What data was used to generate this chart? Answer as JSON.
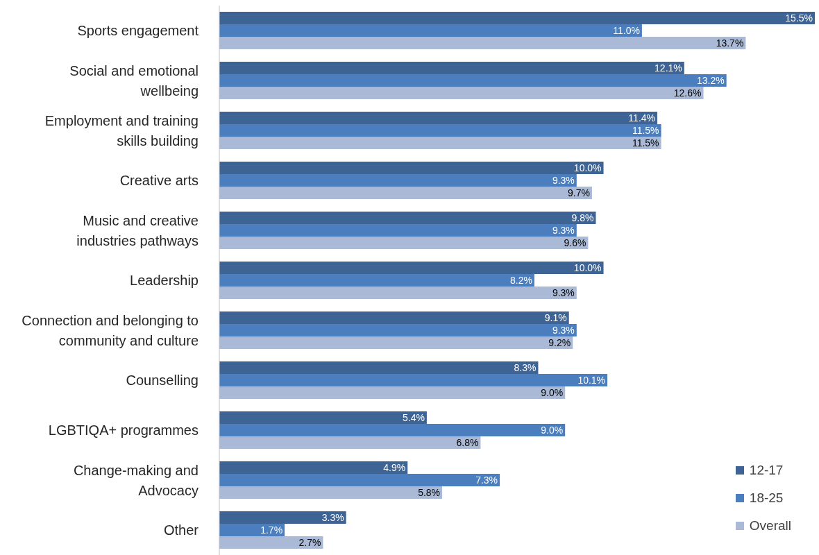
{
  "chart_data": {
    "type": "bar",
    "orientation": "horizontal",
    "categories": [
      "Sports engagement",
      "Social and emotional wellbeing",
      "Employment and training skills building",
      "Creative arts",
      "Music and creative industries pathways",
      "Leadership",
      "Connection and belonging to community and culture",
      "Counselling",
      "LGBTIQA+ programmes",
      "Change-making and Advocacy",
      "Other"
    ],
    "series": [
      {
        "name": "12-17",
        "color": "#3e6496",
        "values": [
          15.5,
          12.1,
          11.4,
          10.0,
          9.8,
          10.0,
          9.1,
          8.3,
          5.4,
          4.9,
          3.3
        ],
        "value_labels": [
          "15.5%",
          "12.1%",
          "11.4%",
          "10.0%",
          "9.8%",
          "10.0%",
          "9.1%",
          "8.3%",
          "5.4%",
          "4.9%",
          "3.3%"
        ]
      },
      {
        "name": "18-25",
        "color": "#4a7ebf",
        "values": [
          11.0,
          13.2,
          11.5,
          9.3,
          9.3,
          8.2,
          9.3,
          10.1,
          9.0,
          7.3,
          1.7
        ],
        "value_labels": [
          "11.0%",
          "13.2%",
          "11.5%",
          "9.3%",
          "9.3%",
          "8.2%",
          "9.3%",
          "10.1%",
          "9.0%",
          "7.3%",
          "1.7%"
        ]
      },
      {
        "name": "Overall",
        "color": "#a9b9d6",
        "values": [
          13.7,
          12.6,
          11.5,
          9.7,
          9.6,
          9.3,
          9.2,
          9.0,
          6.8,
          5.8,
          2.7
        ],
        "value_labels": [
          "13.7%",
          "12.6%",
          "11.5%",
          "9.7%",
          "9.6%",
          "9.3%",
          "9.2%",
          "9.0%",
          "6.8%",
          "5.8%",
          "2.7%"
        ]
      }
    ],
    "legend": "bottom right"
  }
}
